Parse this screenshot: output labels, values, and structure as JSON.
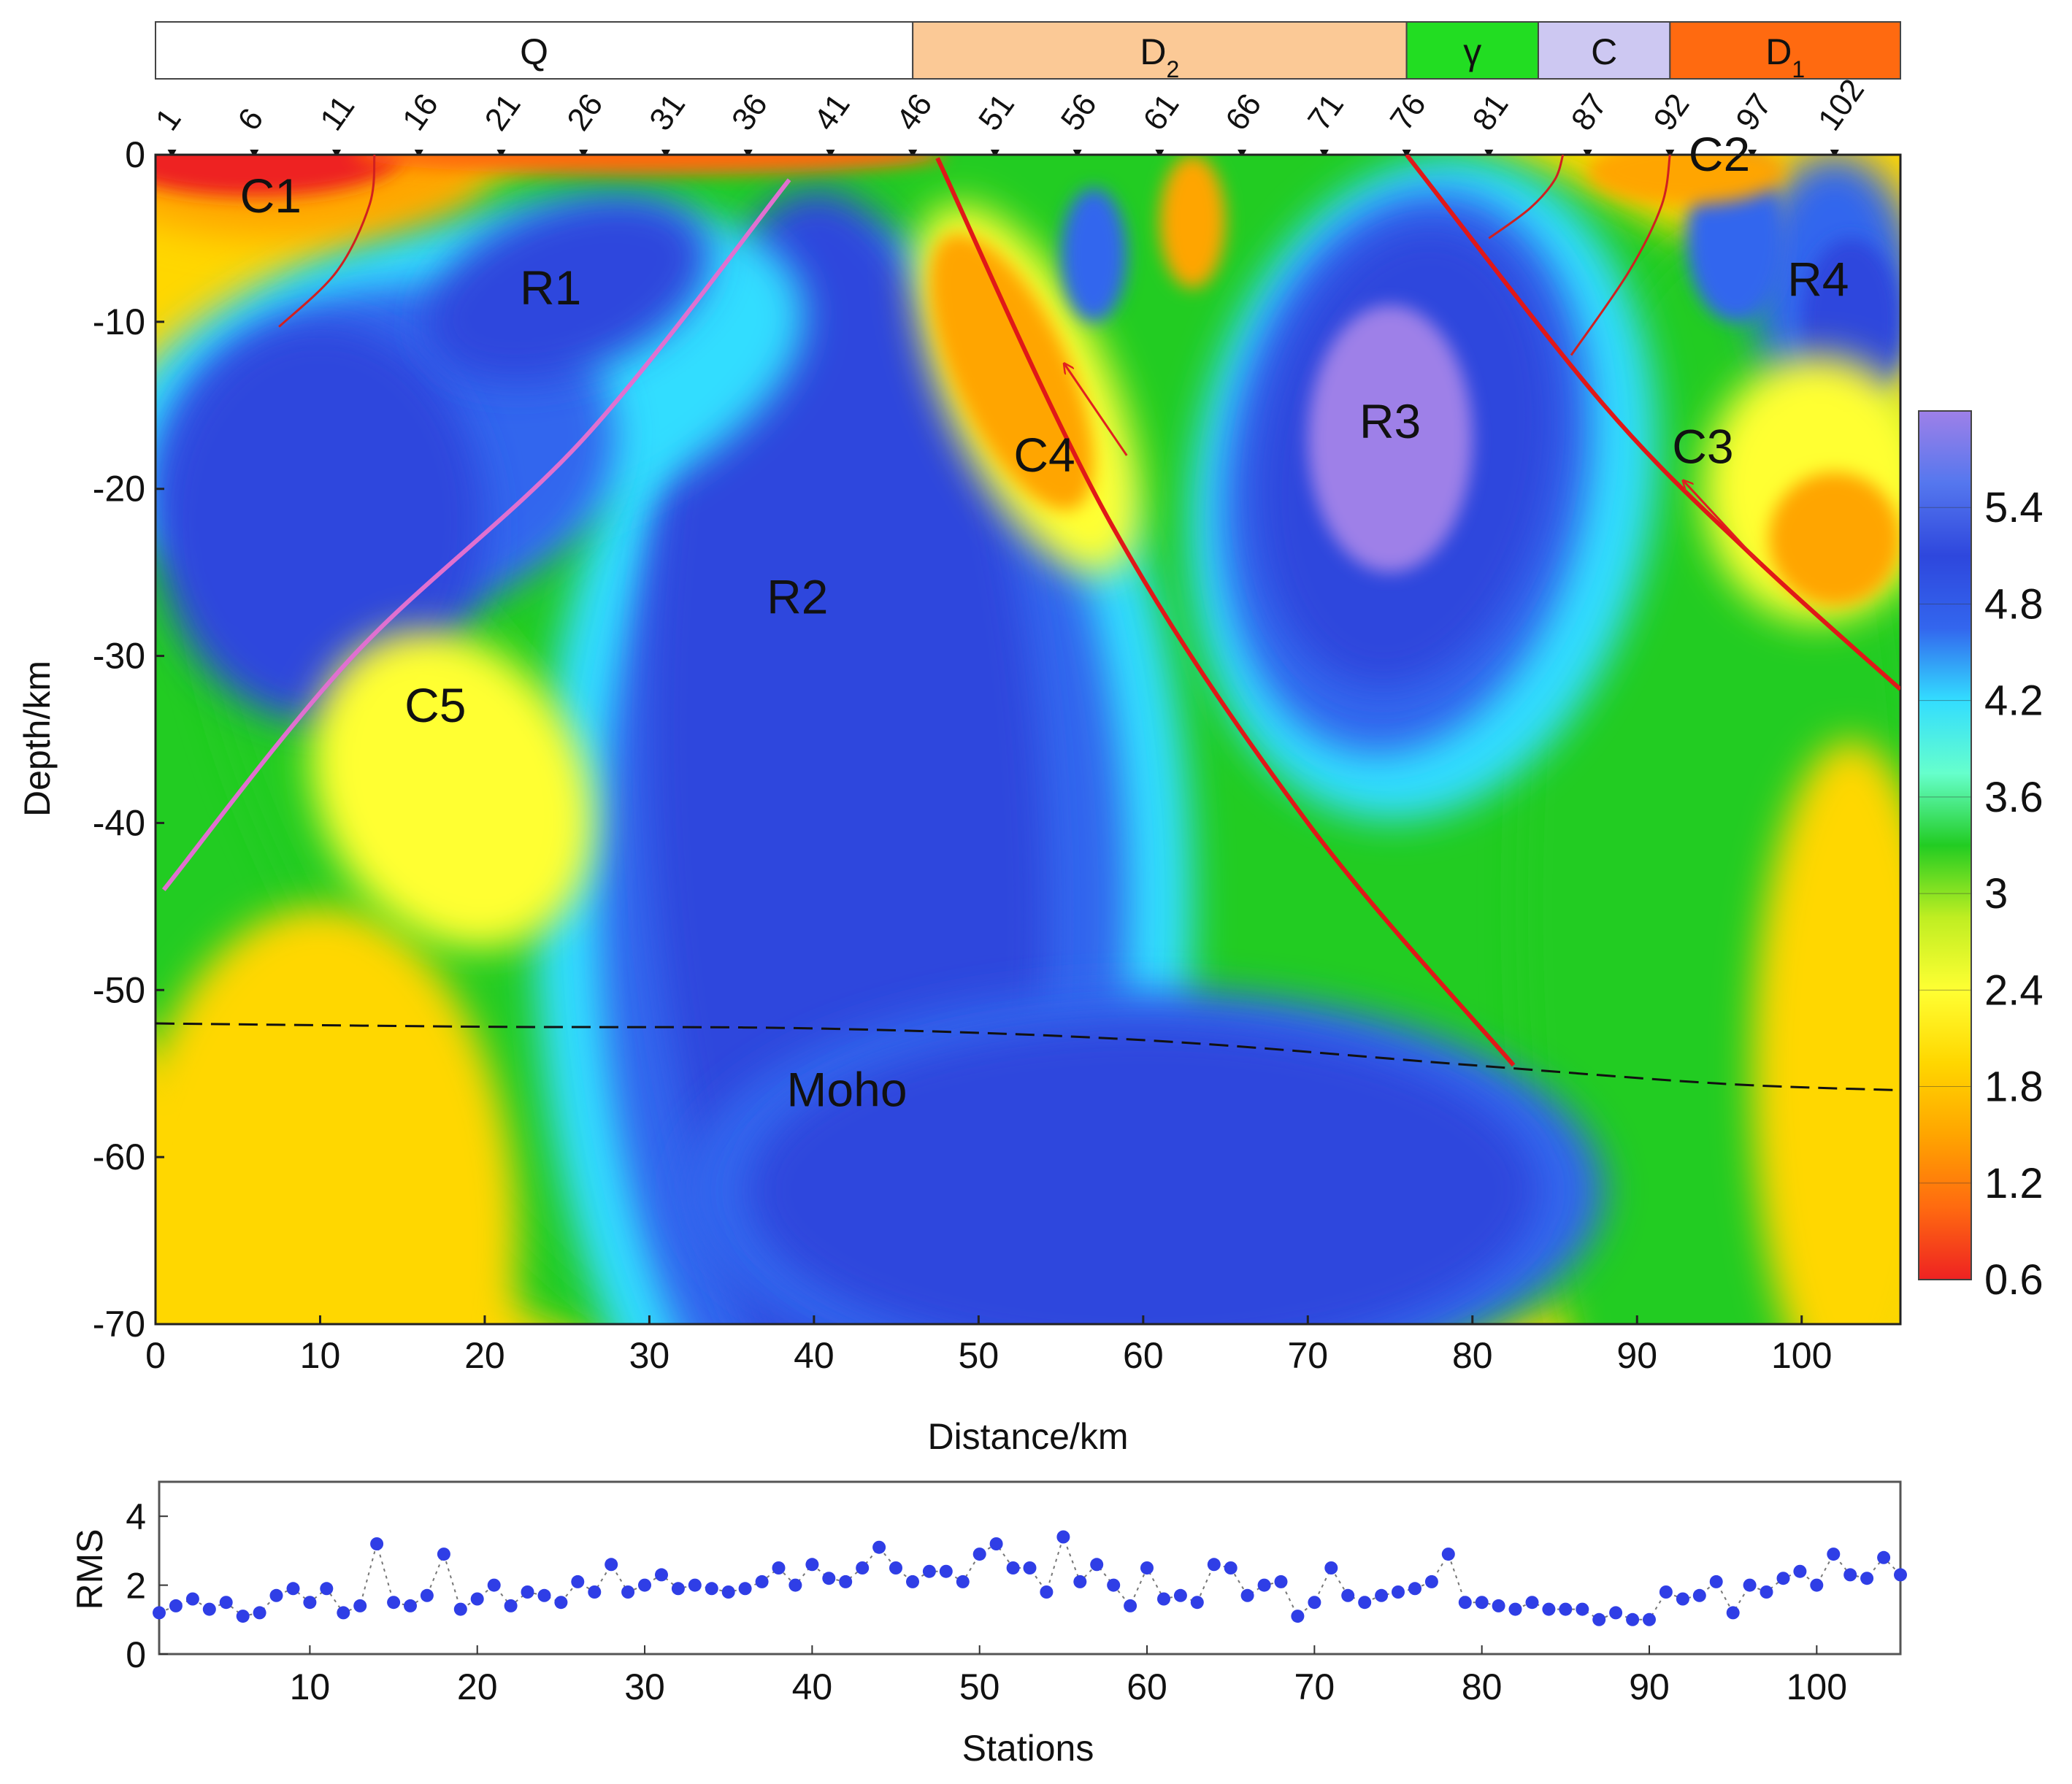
{
  "chart_data": [
    {
      "type": "heatmap",
      "title": "",
      "xlabel": "Distance/km",
      "ylabel": "Depth/km",
      "xlim": [
        0,
        106
      ],
      "ylim": [
        -70,
        0
      ],
      "x_ticks": [
        "0",
        "10",
        "20",
        "30",
        "40",
        "50",
        "60",
        "70",
        "80",
        "90",
        "100"
      ],
      "y_ticks": [
        "0",
        "-10",
        "-20",
        "-30",
        "-40",
        "-50",
        "-60",
        "-70"
      ],
      "station_labels": [
        {
          "label": "1",
          "x": 1
        },
        {
          "label": "6",
          "x": 6
        },
        {
          "label": "11",
          "x": 11
        },
        {
          "label": "16",
          "x": 16
        },
        {
          "label": "21",
          "x": 21
        },
        {
          "label": "26",
          "x": 26
        },
        {
          "label": "31",
          "x": 31
        },
        {
          "label": "36",
          "x": 36
        },
        {
          "label": "41",
          "x": 41
        },
        {
          "label": "46",
          "x": 46
        },
        {
          "label": "51",
          "x": 51
        },
        {
          "label": "56",
          "x": 56
        },
        {
          "label": "61",
          "x": 61
        },
        {
          "label": "66",
          "x": 66
        },
        {
          "label": "71",
          "x": 71
        },
        {
          "label": "76",
          "x": 76
        },
        {
          "label": "81",
          "x": 81
        },
        {
          "label": "87",
          "x": 87
        },
        {
          "label": "92",
          "x": 92
        },
        {
          "label": "97",
          "x": 97
        },
        {
          "label": "102",
          "x": 102
        }
      ],
      "geology_units": [
        {
          "label": "Q",
          "sub": "",
          "from": 0,
          "to": 46,
          "color": "#ffffff"
        },
        {
          "label": "D",
          "sub": "2",
          "from": 46,
          "to": 76,
          "color": "#fbc996"
        },
        {
          "label": "γ",
          "sub": "",
          "from": 76,
          "to": 84,
          "color": "#22dd22"
        },
        {
          "label": "C",
          "sub": "",
          "from": 84,
          "to": 92,
          "color": "#cdc8f2"
        },
        {
          "label": "D",
          "sub": "1",
          "from": 92,
          "to": 106,
          "color": "#ff6a10"
        }
      ],
      "colorbar": {
        "ticks": [
          "5.4",
          "4.8",
          "4.2",
          "3.6",
          "3",
          "2.4",
          "1.8",
          "1.2",
          "0.6"
        ],
        "range": [
          0.6,
          6.0
        ],
        "colors": [
          "#ee2222",
          "#ff6a10",
          "#ffa500",
          "#ffd700",
          "#ffff33",
          "#bfee22",
          "#22cc22",
          "#66ffcc",
          "#33ddff",
          "#3366ee",
          "#2e47dd",
          "#5577ee",
          "#9e80e8"
        ]
      },
      "regions": [
        {
          "label": "C1",
          "x": 7,
          "y": -2.5
        },
        {
          "label": "R1",
          "x": 24,
          "y": -8
        },
        {
          "label": "R2",
          "x": 39,
          "y": -26.5
        },
        {
          "label": "R3",
          "x": 75,
          "y": -16
        },
        {
          "label": "R4",
          "x": 101,
          "y": -7.5
        },
        {
          "label": "C2",
          "x": 95,
          "y": 0
        },
        {
          "label": "C3",
          "x": 94,
          "y": -17.5
        },
        {
          "label": "C4",
          "x": 54,
          "y": -18
        },
        {
          "label": "C5",
          "x": 17,
          "y": -33
        },
        {
          "label": "Moho",
          "x": 42,
          "y": -56
        }
      ],
      "moho": {
        "x": [
          0,
          20,
          40,
          60,
          80,
          95,
          106
        ],
        "y": [
          -52,
          -52.2,
          -52.3,
          -53,
          -54.5,
          -55.6,
          -56
        ]
      },
      "faults": [
        {
          "x": [
            47.5,
            58,
            70,
            82.5
          ],
          "y": [
            -0.2,
            -22,
            -40,
            -54.5
          ]
        },
        {
          "x": [
            76,
            88,
            97,
            106
          ],
          "y": [
            0,
            -15,
            -24,
            -32
          ]
        }
      ]
    },
    {
      "type": "scatter",
      "title": "",
      "xlabel": "Stations",
      "ylabel": "RMS",
      "xlim": [
        1,
        105
      ],
      "ylim": [
        0,
        5
      ],
      "x_ticks": [
        "10",
        "20",
        "30",
        "40",
        "50",
        "60",
        "70",
        "80",
        "90",
        "100"
      ],
      "y_ticks": [
        "0",
        "2",
        "4"
      ],
      "grid": false,
      "x": [
        1,
        2,
        3,
        4,
        5,
        6,
        7,
        8,
        9,
        10,
        11,
        12,
        13,
        14,
        15,
        16,
        17,
        18,
        19,
        20,
        21,
        22,
        23,
        24,
        25,
        26,
        27,
        28,
        29,
        30,
        31,
        32,
        33,
        34,
        35,
        36,
        37,
        38,
        39,
        40,
        41,
        42,
        43,
        44,
        45,
        46,
        47,
        48,
        49,
        50,
        51,
        52,
        53,
        54,
        55,
        56,
        57,
        58,
        59,
        60,
        61,
        62,
        63,
        64,
        65,
        66,
        67,
        68,
        69,
        70,
        71,
        72,
        73,
        74,
        75,
        76,
        77,
        78,
        79,
        80,
        81,
        82,
        83,
        84,
        85,
        86,
        87,
        88,
        89,
        90,
        91,
        92,
        93,
        94,
        95,
        96,
        97,
        98,
        99,
        100,
        101,
        102,
        103,
        104,
        105
      ],
      "y": [
        1.2,
        1.4,
        1.6,
        1.3,
        1.5,
        1.1,
        1.2,
        1.7,
        1.9,
        1.5,
        1.9,
        1.2,
        1.4,
        3.2,
        1.5,
        1.4,
        1.7,
        2.9,
        1.3,
        1.6,
        2.0,
        1.4,
        1.8,
        1.7,
        1.5,
        2.1,
        1.8,
        2.6,
        1.8,
        2.0,
        2.3,
        1.9,
        2.0,
        1.9,
        1.8,
        1.9,
        2.1,
        2.5,
        2.0,
        2.6,
        2.2,
        2.1,
        2.5,
        3.1,
        2.5,
        2.1,
        2.4,
        2.4,
        2.1,
        2.9,
        3.2,
        2.5,
        2.5,
        1.8,
        3.4,
        2.1,
        2.6,
        2.0,
        1.4,
        2.5,
        1.6,
        1.7,
        1.5,
        2.6,
        2.5,
        1.7,
        2.0,
        2.1,
        1.1,
        1.5,
        2.5,
        1.7,
        1.5,
        1.7,
        1.8,
        1.9,
        2.1,
        2.9,
        1.5,
        1.5,
        1.4,
        1.3,
        1.5,
        1.3,
        1.3,
        1.3,
        1.0,
        1.2,
        1.0,
        1.0,
        1.8,
        1.6,
        1.7,
        2.1,
        1.2,
        2.0,
        1.8,
        2.2,
        2.4,
        2.0,
        2.9,
        2.3,
        2.2,
        2.8,
        2.3
      ]
    }
  ]
}
